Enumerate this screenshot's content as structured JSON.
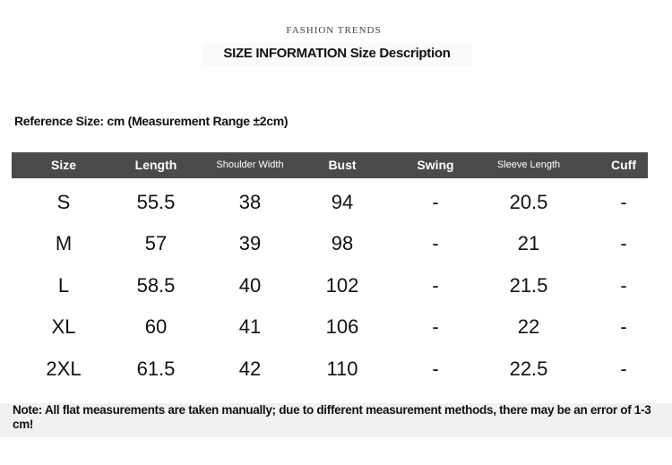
{
  "kicker": "FASHION TRENDS",
  "title": "SIZE INFORMATION Size Description",
  "reference": "Reference Size: cm (Measurement Range ±2cm)",
  "table": {
    "headers": [
      "Size",
      "Length",
      "Shoulder Width",
      "Bust",
      "Swing",
      "Sleeve Length",
      "Cuff"
    ],
    "rows": [
      [
        "S",
        "55.5",
        "38",
        "94",
        "-",
        "20.5",
        "-"
      ],
      [
        "M",
        "57",
        "39",
        "98",
        "-",
        "21",
        "-"
      ],
      [
        "L",
        "58.5",
        "40",
        "102",
        "-",
        "21.5",
        "-"
      ],
      [
        "XL",
        "60",
        "41",
        "106",
        "-",
        "22",
        "-"
      ],
      [
        "2XL",
        "61.5",
        "42",
        "110",
        "-",
        "22.5",
        "-"
      ]
    ]
  },
  "note": "Note: All flat measurements are taken manually; due to different measurement methods, there may be an error of 1-3 cm!",
  "colors": {
    "header_bg": "#4a4a4a",
    "note_bg": "#f1f1f1"
  }
}
